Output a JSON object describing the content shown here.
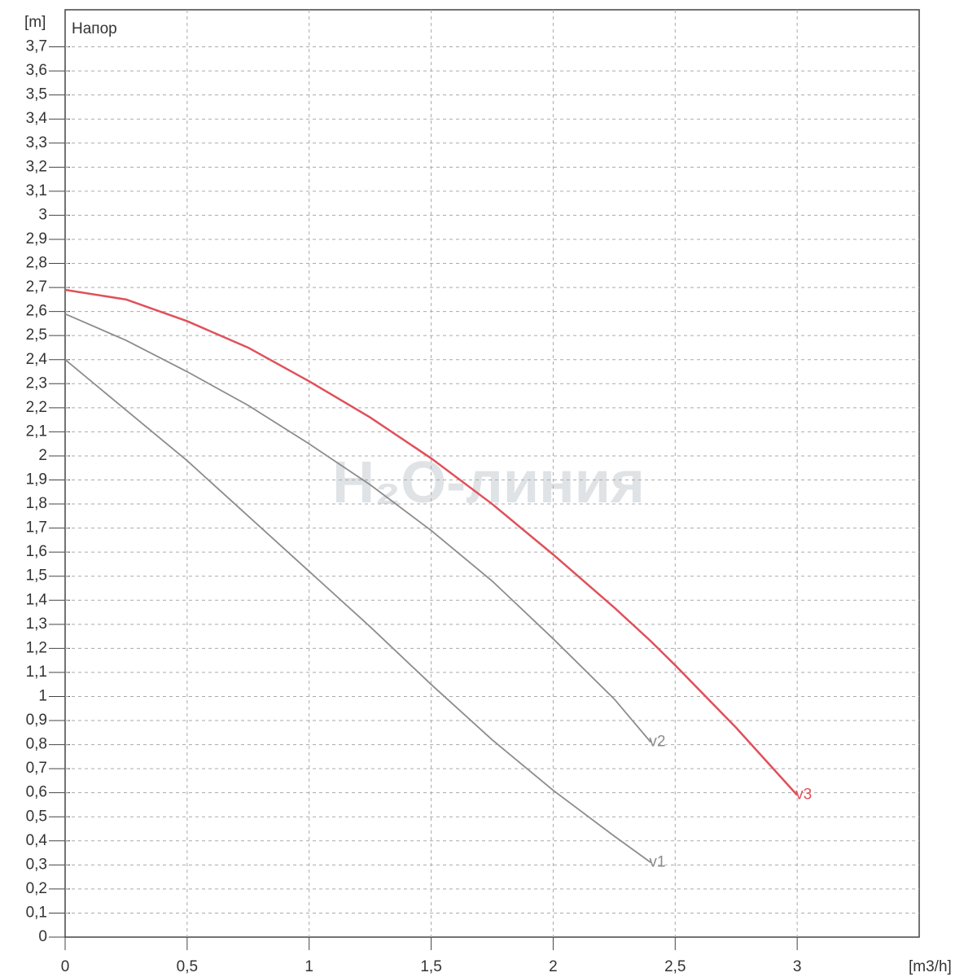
{
  "chart_data": {
    "type": "line",
    "y_label": "Напор",
    "y_unit": "[m]",
    "x_unit": "[m3/h]",
    "watermark": "H₂O-линия",
    "x": [
      0,
      0.25,
      0.5,
      0.75,
      1.0,
      1.25,
      1.5,
      1.75,
      2.0,
      2.25,
      2.4,
      2.5,
      2.75,
      3.0
    ],
    "series": [
      {
        "name": "v1",
        "color": "#8c8c8c",
        "values": [
          2.4,
          2.19,
          1.98,
          1.75,
          1.52,
          1.29,
          1.05,
          0.82,
          0.61,
          0.42,
          0.31,
          null,
          null,
          null
        ]
      },
      {
        "name": "v2",
        "color": "#8c8c8c",
        "values": [
          2.59,
          2.48,
          2.35,
          2.21,
          2.05,
          1.88,
          1.69,
          1.48,
          1.24,
          0.99,
          0.81,
          null,
          null,
          null
        ]
      },
      {
        "name": "v3",
        "color": "#e0505a",
        "values": [
          2.69,
          2.65,
          2.56,
          2.45,
          2.31,
          2.16,
          1.99,
          1.8,
          1.59,
          1.37,
          1.23,
          1.13,
          0.87,
          0.59
        ]
      }
    ],
    "xlim": [
      0,
      3.5
    ],
    "ylim": [
      0,
      3.8
    ],
    "xticks": [
      0,
      {
        "value": 0.5,
        "label": "0,5"
      },
      1,
      {
        "value": 1.5,
        "label": "1,5"
      },
      2,
      {
        "value": 2.5,
        "label": "2,5"
      },
      3
    ],
    "yticks": [
      0,
      {
        "value": 0.1,
        "label": "0,1"
      },
      {
        "value": 0.2,
        "label": "0,2"
      },
      {
        "value": 0.3,
        "label": "0,3"
      },
      {
        "value": 0.4,
        "label": "0,4"
      },
      {
        "value": 0.5,
        "label": "0,5"
      },
      {
        "value": 0.6,
        "label": "0,6"
      },
      {
        "value": 0.7,
        "label": "0,7"
      },
      {
        "value": 0.8,
        "label": "0,8"
      },
      {
        "value": 0.9,
        "label": "0,9"
      },
      1,
      {
        "value": 1.1,
        "label": "1,1"
      },
      {
        "value": 1.2,
        "label": "1,2"
      },
      {
        "value": 1.3,
        "label": "1,3"
      },
      {
        "value": 1.4,
        "label": "1,4"
      },
      {
        "value": 1.5,
        "label": "1,5"
      },
      {
        "value": 1.6,
        "label": "1,6"
      },
      {
        "value": 1.7,
        "label": "1,7"
      },
      {
        "value": 1.8,
        "label": "1,8"
      },
      {
        "value": 1.9,
        "label": "1,9"
      },
      2,
      {
        "value": 2.1,
        "label": "2,1"
      },
      {
        "value": 2.2,
        "label": "2,2"
      },
      {
        "value": 2.3,
        "label": "2,3"
      },
      {
        "value": 2.4,
        "label": "2,4"
      },
      {
        "value": 2.5,
        "label": "2,5"
      },
      {
        "value": 2.6,
        "label": "2,6"
      },
      {
        "value": 2.7,
        "label": "2,7"
      },
      {
        "value": 2.8,
        "label": "2,8"
      },
      {
        "value": 2.9,
        "label": "2,9"
      },
      3,
      {
        "value": 3.1,
        "label": "3,1"
      },
      {
        "value": 3.2,
        "label": "3,2"
      },
      {
        "value": 3.3,
        "label": "3,3"
      },
      {
        "value": 3.4,
        "label": "3,4"
      },
      {
        "value": 3.5,
        "label": "3,5"
      },
      {
        "value": 3.6,
        "label": "3,6"
      },
      {
        "value": 3.7,
        "label": "3,7"
      }
    ],
    "grid": true
  }
}
